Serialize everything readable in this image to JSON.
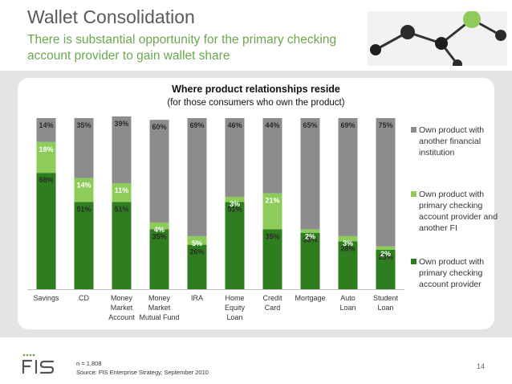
{
  "slide": {
    "title": "Wallet Consolidation",
    "subtitle": "There is substantial opportunity for the primary checking account provider to gain wallet share",
    "footnote_n": "n = 1,808",
    "footnote_source": "Source: FIS Enterprise Strategy, September 2010",
    "page_number": "14"
  },
  "chart_data": {
    "type": "bar",
    "stacked": true,
    "title": "Where product relationships reside",
    "subtitle": "(for those consumers who own the product)",
    "ylim": [
      0,
      100
    ],
    "categories": [
      [
        "Savings"
      ],
      [
        "CD"
      ],
      [
        "Money",
        "Market",
        "Account"
      ],
      [
        "Money",
        "Market",
        "Mutual Fund"
      ],
      [
        "IRA"
      ],
      [
        "Home",
        "Equity",
        "Loan"
      ],
      [
        "Credit",
        "Card"
      ],
      [
        "Mortgage"
      ],
      [
        "Auto",
        "Loan"
      ],
      [
        "Student",
        "Loan"
      ]
    ],
    "series": [
      {
        "name": "Own product with primary checking account provider",
        "color": "#2e7d1e",
        "values": [
          68,
          51,
          51,
          35,
          26,
          51,
          35,
          33,
          28,
          23
        ]
      },
      {
        "name": "Own product with primary checking account provider and another FI",
        "color": "#8dcc5a",
        "values": [
          18,
          14,
          11,
          4,
          5,
          3,
          21,
          2,
          3,
          2
        ]
      },
      {
        "name": "Own product with another financial institution",
        "color": "#8c8c8c",
        "values": [
          14,
          35,
          39,
          60,
          69,
          46,
          44,
          65,
          69,
          75
        ]
      }
    ],
    "legend_position": "right",
    "grid": false
  },
  "legend": {
    "items": [
      {
        "label": "Own product with another financial institution",
        "color": "#8c8c8c"
      },
      {
        "label": "Own product with primary checking account provider and another FI",
        "color": "#8dcc5a"
      },
      {
        "label": "Own product with primary checking account provider",
        "color": "#2e7d1e"
      }
    ]
  }
}
